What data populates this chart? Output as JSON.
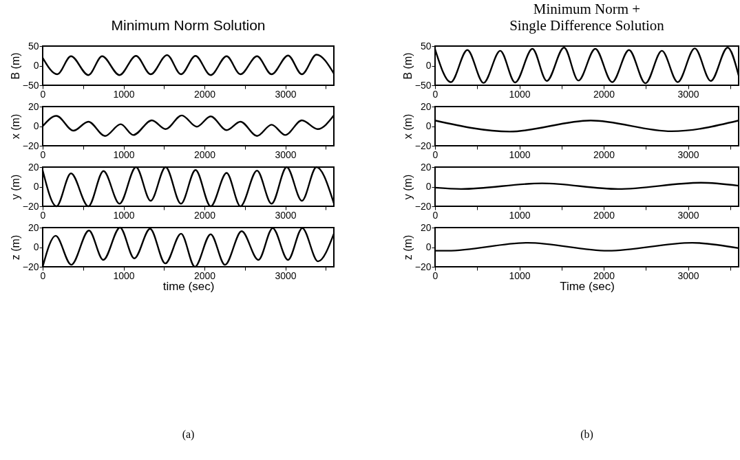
{
  "chart_data": [
    {
      "type": "line",
      "title": "Minimum Norm Solution",
      "ylabel": "B (m)",
      "xlim": [
        0,
        3600
      ],
      "xticks": [
        0,
        {
          "value": 500,
          "label": null
        },
        1000,
        {
          "value": 1500,
          "label": null
        },
        2000,
        {
          "value": 2500,
          "label": null
        },
        3000,
        {
          "value": 3500,
          "label": null
        }
      ],
      "ylim": [
        -50,
        50
      ],
      "yticks": [
        -50,
        0,
        50
      ],
      "series": [
        {
          "color": "#000000",
          "x": [
            0,
            180,
            350,
            565,
            735,
            950,
            1154,
            1335,
            1538,
            1710,
            1889,
            2077,
            2274,
            2445,
            2650,
            2830,
            3034,
            3205,
            3385,
            3600
          ],
          "values": [
            20,
            -22,
            24,
            -24,
            24,
            -24,
            25,
            -22,
            27,
            -22,
            25,
            -24,
            24,
            -22,
            24,
            -22,
            26,
            -22,
            28,
            -20
          ]
        }
      ]
    },
    {
      "type": "line",
      "ylabel": "x (m)",
      "xlim": [
        0,
        3600
      ],
      "xticks": [
        0,
        {
          "value": 500,
          "label": null
        },
        1000,
        {
          "value": 1500,
          "label": null
        },
        2000,
        {
          "value": 2500,
          "label": null
        },
        3000,
        {
          "value": 3500,
          "label": null
        }
      ],
      "ylim": [
        -20,
        20
      ],
      "yticks": [
        -20,
        0,
        20
      ],
      "series": [
        {
          "color": "#000000",
          "x": [
            0,
            170,
            380,
            565,
            770,
            965,
            1120,
            1350,
            1520,
            1720,
            1905,
            2077,
            2274,
            2445,
            2650,
            2830,
            3000,
            3205,
            3400,
            3600
          ],
          "values": [
            0,
            10.5,
            -4.6,
            4.6,
            -10,
            2,
            -9,
            6,
            -3,
            11,
            -0.5,
            10,
            -4,
            4.6,
            -10,
            1.5,
            -9,
            6,
            -3,
            11
          ]
        }
      ]
    },
    {
      "type": "line",
      "ylabel": "y (m)",
      "xlim": [
        0,
        3600
      ],
      "xticks": [
        0,
        {
          "value": 500,
          "label": null
        },
        1000,
        {
          "value": 1500,
          "label": null
        },
        2000,
        {
          "value": 2500,
          "label": null
        },
        3000,
        {
          "value": 3500,
          "label": null
        }
      ],
      "ylim": [
        -20,
        20
      ],
      "yticks": [
        -20,
        0,
        20
      ],
      "series": [
        {
          "color": "#000000",
          "x": [
            0,
            170,
            350,
            565,
            752,
            950,
            1154,
            1335,
            1520,
            1710,
            1890,
            2077,
            2274,
            2445,
            2650,
            2830,
            3017,
            3205,
            3385,
            3600
          ],
          "values": [
            16.7,
            -20,
            13.6,
            -20,
            16,
            -17.4,
            20,
            -14.4,
            20,
            -17.4,
            17,
            -20,
            14,
            -20,
            16.4,
            -17.4,
            20,
            -14.4,
            20,
            -17
          ]
        }
      ]
    },
    {
      "type": "line",
      "ylabel": "z (m)",
      "xlabel": "time (sec)",
      "annotations": [
        "(a)"
      ],
      "xlim": [
        0,
        3600
      ],
      "xticks": [
        0,
        {
          "value": 500,
          "label": null
        },
        1000,
        {
          "value": 1500,
          "label": null
        },
        2000,
        {
          "value": 2500,
          "label": null
        },
        3000,
        {
          "value": 3500,
          "label": null
        }
      ],
      "ylim": [
        -20,
        20
      ],
      "yticks": [
        -20,
        0,
        20
      ],
      "series": [
        {
          "color": "#000000",
          "x": [
            0,
            160,
            354,
            572,
            749,
            956,
            1133,
            1328,
            1516,
            1711,
            1882,
            2077,
            2254,
            2460,
            2667,
            2844,
            3033,
            3210,
            3404,
            3600
          ],
          "values": [
            -20,
            11.7,
            -18,
            17,
            -13,
            20,
            -11.4,
            18.8,
            -16.6,
            13.8,
            -20,
            13.2,
            -18,
            16.3,
            -13,
            19.4,
            -13,
            19.4,
            -14.5,
            13.8
          ]
        }
      ]
    },
    {
      "type": "line",
      "title": "Minimum Norm +\nSingle Difference Solution",
      "ylabel": "B (m)",
      "xlim": [
        0,
        3600
      ],
      "xticks": [
        0,
        {
          "value": 500,
          "label": null
        },
        1000,
        {
          "value": 1500,
          "label": null
        },
        2000,
        {
          "value": 2500,
          "label": null
        },
        3000,
        {
          "value": 3500,
          "label": null
        }
      ],
      "ylim": [
        -50,
        50
      ],
      "yticks": [
        -50,
        0,
        50
      ],
      "series": [
        {
          "color": "#000000",
          "x": [
            0,
            187,
            383,
            575,
            773,
            950,
            1155,
            1325,
            1530,
            1700,
            1900,
            2100,
            2300,
            2495,
            2690,
            2878,
            3080,
            3270,
            3470,
            3600
          ],
          "values": [
            42,
            -42,
            40,
            -44,
            38,
            -43,
            43,
            -39,
            46,
            -38,
            43,
            -42,
            40,
            -45,
            38,
            -42,
            44,
            -39,
            46,
            -25
          ]
        }
      ]
    },
    {
      "type": "line",
      "ylabel": "x (m)",
      "xlim": [
        0,
        3600
      ],
      "xticks": [
        0,
        {
          "value": 500,
          "label": null
        },
        1000,
        {
          "value": 1500,
          "label": null
        },
        2000,
        {
          "value": 2500,
          "label": null
        },
        3000,
        {
          "value": 3500,
          "label": null
        }
      ],
      "ylim": [
        -20,
        20
      ],
      "yticks": [
        -20,
        0,
        20
      ],
      "series": [
        {
          "color": "#000000",
          "x": [
            0,
            886,
            1845,
            2805,
            3600
          ],
          "values": [
            5.8,
            -5.5,
            5.8,
            -5.2,
            5.8
          ]
        }
      ]
    },
    {
      "type": "line",
      "ylabel": "y (m)",
      "xlim": [
        0,
        3600
      ],
      "xticks": [
        0,
        {
          "value": 500,
          "label": null
        },
        1000,
        {
          "value": 1500,
          "label": null
        },
        2000,
        {
          "value": 2500,
          "label": null
        },
        3000,
        {
          "value": 3500,
          "label": null
        }
      ],
      "ylim": [
        -20,
        20
      ],
      "yticks": [
        -20,
        0,
        20
      ],
      "series": [
        {
          "color": "#000000",
          "x": [
            0,
            310,
            1270,
            2170,
            3155,
            3600
          ],
          "values": [
            -1,
            -2.4,
            3.4,
            -2.4,
            4,
            1
          ]
        }
      ]
    },
    {
      "type": "line",
      "ylabel": "z (m)",
      "xlabel": "Time (sec)",
      "annotations": [
        "(b)"
      ],
      "xlim": [
        0,
        3600
      ],
      "xticks": [
        0,
        {
          "value": 500,
          "label": null
        },
        1000,
        {
          "value": 1500,
          "label": null
        },
        2000,
        {
          "value": 2500,
          "label": null
        },
        3000,
        {
          "value": 3500,
          "label": null
        }
      ],
      "ylim": [
        -20,
        20
      ],
      "yticks": [
        -20,
        0,
        20
      ],
      "series": [
        {
          "color": "#000000",
          "x": [
            0,
            150,
            1100,
            2050,
            3050,
            3600
          ],
          "values": [
            -3.6,
            -3.6,
            4.5,
            -3.6,
            4.5,
            -1
          ]
        }
      ]
    }
  ]
}
